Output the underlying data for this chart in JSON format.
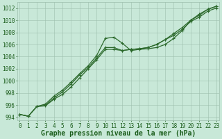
{
  "title": "Graphe pression niveau de la mer (hPa)",
  "hours": [
    0,
    1,
    2,
    3,
    4,
    5,
    6,
    7,
    8,
    9,
    10,
    11,
    12,
    13,
    14,
    15,
    16,
    17,
    18,
    19,
    20,
    21,
    22,
    23
  ],
  "series": [
    [
      994.5,
      994.2,
      995.8,
      996.2,
      997.5,
      998.5,
      999.8,
      1001.2,
      1002.5,
      1004.2,
      1007.0,
      1007.2,
      1006.2,
      1005.0,
      1005.2,
      1005.3,
      1005.5,
      1006.0,
      1007.0,
      1008.3,
      1010.0,
      1011.0,
      1011.8,
      1012.3
    ],
    [
      994.5,
      994.2,
      995.8,
      996.0,
      997.2,
      998.2,
      999.5,
      1001.0,
      1002.2,
      1003.8,
      1005.5,
      1005.5,
      1005.0,
      1005.2,
      1005.3,
      1005.5,
      1006.0,
      1006.8,
      1007.8,
      1008.8,
      1010.0,
      1010.8,
      1011.8,
      1012.3
    ],
    [
      994.5,
      994.2,
      995.8,
      995.9,
      997.0,
      997.8,
      999.0,
      1000.5,
      1002.0,
      1003.5,
      1005.2,
      1005.2,
      1005.0,
      1005.2,
      1005.3,
      1005.5,
      1006.0,
      1006.8,
      1007.5,
      1008.5,
      1009.8,
      1010.5,
      1011.5,
      1012.0
    ]
  ],
  "line_color": "#2d6a2d",
  "bg_color": "#c8e8d8",
  "grid_color": "#9dbfad",
  "text_color": "#1a5c1a",
  "ylim_min": 993.5,
  "ylim_max": 1013.0,
  "yticks": [
    994,
    996,
    998,
    1000,
    1002,
    1004,
    1006,
    1008,
    1010,
    1012
  ],
  "tick_fontsize": 5.5,
  "title_fontsize": 7.0,
  "linewidth": 0.9,
  "markersize": 3.5
}
